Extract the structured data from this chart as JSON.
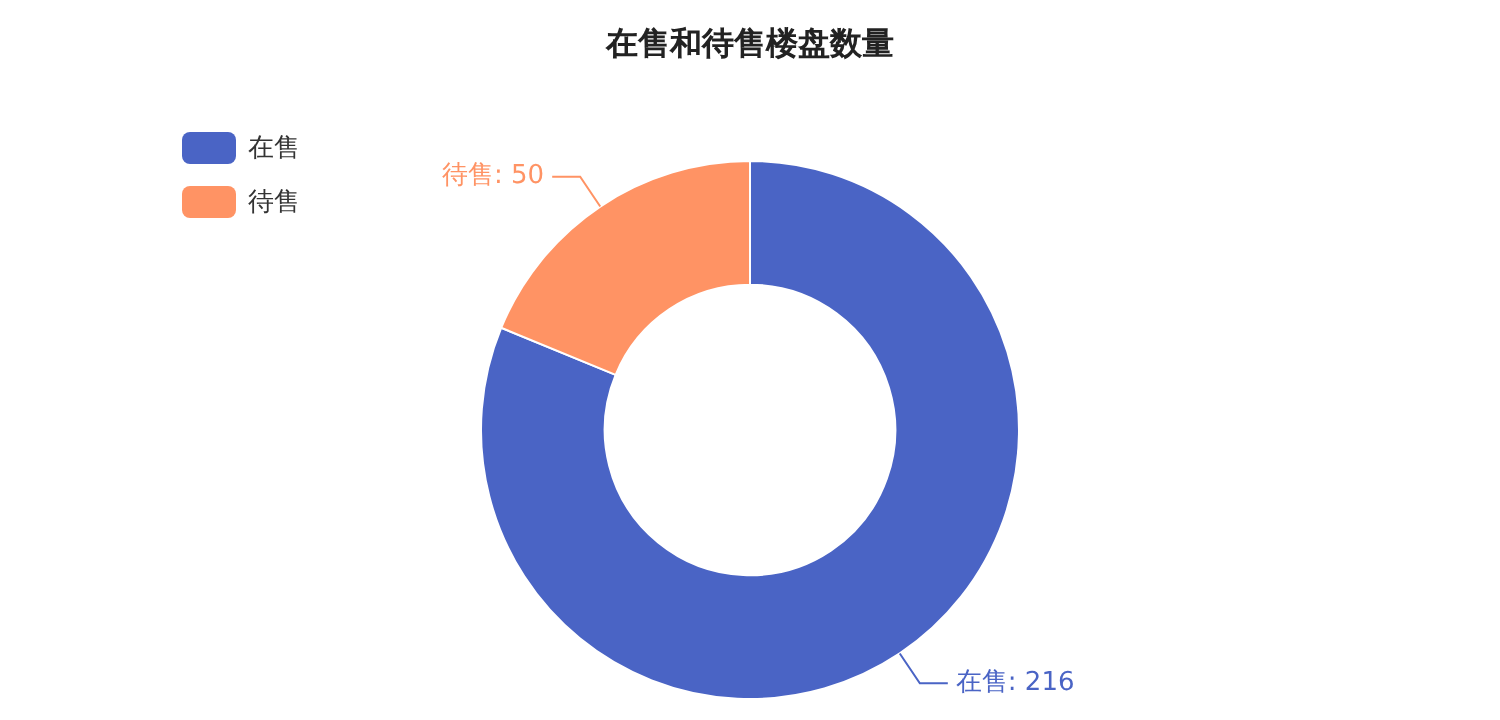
{
  "chart_data": {
    "type": "donut",
    "title": "在售和待售楼盘数量",
    "categories": [
      "在售",
      "待售"
    ],
    "values": [
      216,
      50
    ],
    "value_labels": [
      "在售: 216",
      "待售: 50"
    ],
    "colors": [
      "#4a64c5",
      "#ff9364"
    ],
    "legend": "top left"
  }
}
